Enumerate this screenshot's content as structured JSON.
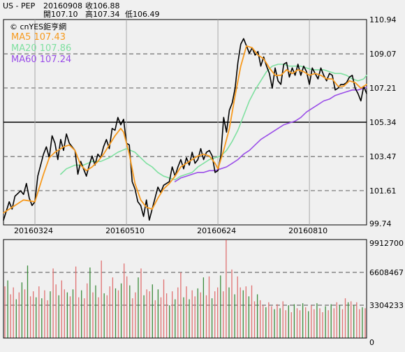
{
  "header": {
    "symbol": "US - PEP",
    "date": "20160908",
    "close_label": "收106.88",
    "open_label": "開107.10",
    "high_label": "高107.34",
    "low_label": "低106.49"
  },
  "source_label": "© cnYES鉅亨網",
  "colors": {
    "background": "#f0f0f0",
    "price": "#000000",
    "ma5": "#f79a1e",
    "ma20": "#7fe0a0",
    "ma60": "#9a4ee8",
    "volume_up": "#e07070",
    "volume_down": "#3a8a3a",
    "grid": "#707070"
  },
  "chart_data": [
    {
      "type": "line",
      "name": "price-chart",
      "ylim": [
        99.74,
        110.94
      ],
      "y_ticks": [
        "110.94",
        "109.07",
        "107.21",
        "105.34",
        "103.47",
        "101.61",
        "99.74"
      ],
      "x_tick_labels": [
        "20160324",
        "20160510",
        "20160624",
        "20160810"
      ],
      "x_tick_index": [
        11,
        43,
        75,
        107
      ],
      "n_days": 128,
      "reference_price": 105.34,
      "legend": [
        {
          "key": "ma5",
          "label": "MA5 107.43"
        },
        {
          "key": "ma20",
          "label": "MA20 107.86"
        },
        {
          "key": "ma60",
          "label": "MA60 107.24"
        }
      ],
      "price_knots": [
        [
          0,
          100.0
        ],
        [
          2,
          101.0
        ],
        [
          3,
          100.6
        ],
        [
          4,
          101.3
        ],
        [
          6,
          101.6
        ],
        [
          7,
          101.4
        ],
        [
          8,
          102.0
        ],
        [
          9,
          101.2
        ],
        [
          10,
          100.8
        ],
        [
          11,
          101.0
        ],
        [
          12,
          102.4
        ],
        [
          14,
          103.6
        ],
        [
          15,
          104.0
        ],
        [
          16,
          103.4
        ],
        [
          17,
          104.6
        ],
        [
          18,
          104.2
        ],
        [
          19,
          103.3
        ],
        [
          20,
          104.4
        ],
        [
          21,
          103.8
        ],
        [
          22,
          104.7
        ],
        [
          23,
          104.2
        ],
        [
          24,
          104.0
        ],
        [
          25,
          103.8
        ],
        [
          26,
          102.5
        ],
        [
          27,
          103.2
        ],
        [
          28,
          102.8
        ],
        [
          29,
          102.4
        ],
        [
          30,
          103.0
        ],
        [
          31,
          103.5
        ],
        [
          32,
          103.0
        ],
        [
          33,
          103.6
        ],
        [
          34,
          103.4
        ],
        [
          35,
          104.0
        ],
        [
          36,
          104.4
        ],
        [
          37,
          103.9
        ],
        [
          38,
          105.0
        ],
        [
          39,
          104.9
        ],
        [
          40,
          105.6
        ],
        [
          41,
          105.2
        ],
        [
          42,
          105.5
        ],
        [
          43,
          104.2
        ],
        [
          44,
          104.1
        ],
        [
          45,
          102.1
        ],
        [
          46,
          101.7
        ],
        [
          47,
          101.0
        ],
        [
          48,
          100.8
        ],
        [
          49,
          100.2
        ],
        [
          50,
          101.1
        ],
        [
          51,
          100.0
        ],
        [
          52,
          100.6
        ],
        [
          53,
          101.2
        ],
        [
          54,
          101.8
        ],
        [
          55,
          101.5
        ],
        [
          56,
          101.9
        ],
        [
          57,
          102.0
        ],
        [
          58,
          102.1
        ],
        [
          59,
          102.9
        ],
        [
          60,
          102.4
        ],
        [
          61,
          102.9
        ],
        [
          62,
          103.3
        ],
        [
          63,
          102.8
        ],
        [
          64,
          103.4
        ],
        [
          65,
          103.0
        ],
        [
          66,
          103.7
        ],
        [
          67,
          103.1
        ],
        [
          68,
          103.3
        ],
        [
          69,
          103.9
        ],
        [
          70,
          103.3
        ],
        [
          71,
          103.7
        ],
        [
          72,
          103.8
        ],
        [
          73,
          103.5
        ],
        [
          74,
          102.6
        ],
        [
          75,
          102.7
        ],
        [
          76,
          103.5
        ],
        [
          77,
          105.6
        ],
        [
          78,
          104.8
        ],
        [
          79,
          106.0
        ],
        [
          80,
          106.4
        ],
        [
          81,
          107.2
        ],
        [
          82,
          108.6
        ],
        [
          83,
          109.6
        ],
        [
          84,
          109.9
        ],
        [
          85,
          109.5
        ],
        [
          86,
          109.1
        ],
        [
          87,
          109.4
        ],
        [
          88,
          109.0
        ],
        [
          89,
          109.2
        ],
        [
          90,
          108.4
        ],
        [
          91,
          108.9
        ],
        [
          92,
          108.4
        ],
        [
          93,
          108.0
        ],
        [
          94,
          107.2
        ],
        [
          95,
          108.3
        ],
        [
          96,
          107.6
        ],
        [
          97,
          107.4
        ],
        [
          98,
          108.5
        ],
        [
          99,
          108.6
        ],
        [
          100,
          107.8
        ],
        [
          101,
          108.3
        ],
        [
          102,
          107.9
        ],
        [
          103,
          108.5
        ],
        [
          104,
          107.9
        ],
        [
          105,
          108.4
        ],
        [
          106,
          108.1
        ],
        [
          107,
          107.4
        ],
        [
          108,
          108.3
        ],
        [
          109,
          108.0
        ],
        [
          110,
          107.7
        ],
        [
          111,
          108.3
        ],
        [
          112,
          107.9
        ],
        [
          113,
          107.6
        ],
        [
          114,
          108.0
        ],
        [
          115,
          107.9
        ],
        [
          116,
          107.1
        ],
        [
          117,
          107.2
        ],
        [
          118,
          107.4
        ],
        [
          119,
          107.4
        ],
        [
          120,
          107.5
        ],
        [
          121,
          107.8
        ],
        [
          122,
          107.9
        ],
        [
          123,
          107.2
        ],
        [
          124,
          106.9
        ],
        [
          125,
          106.5
        ],
        [
          126,
          107.3
        ],
        [
          127,
          106.9
        ]
      ],
      "ma5_knots": [
        [
          0,
          100.4
        ],
        [
          4,
          100.8
        ],
        [
          7,
          101.1
        ],
        [
          11,
          101.0
        ],
        [
          14,
          102.5
        ],
        [
          16,
          103.4
        ],
        [
          18,
          103.7
        ],
        [
          21,
          104.0
        ],
        [
          23,
          104.1
        ],
        [
          25,
          103.8
        ],
        [
          27,
          103.0
        ],
        [
          29,
          102.7
        ],
        [
          31,
          102.9
        ],
        [
          33,
          103.2
        ],
        [
          35,
          103.6
        ],
        [
          37,
          104.1
        ],
        [
          39,
          104.6
        ],
        [
          41,
          105.0
        ],
        [
          42,
          104.8
        ],
        [
          44,
          103.6
        ],
        [
          46,
          102.0
        ],
        [
          48,
          101.1
        ],
        [
          50,
          100.7
        ],
        [
          52,
          100.6
        ],
        [
          54,
          101.2
        ],
        [
          56,
          101.7
        ],
        [
          58,
          102.0
        ],
        [
          60,
          102.4
        ],
        [
          62,
          102.9
        ],
        [
          64,
          103.1
        ],
        [
          66,
          103.3
        ],
        [
          68,
          103.5
        ],
        [
          70,
          103.6
        ],
        [
          72,
          103.5
        ],
        [
          74,
          103.1
        ],
        [
          75,
          102.8
        ],
        [
          77,
          103.8
        ],
        [
          79,
          105.0
        ],
        [
          81,
          106.8
        ],
        [
          83,
          108.4
        ],
        [
          85,
          109.5
        ],
        [
          87,
          109.4
        ],
        [
          89,
          109.0
        ],
        [
          91,
          108.8
        ],
        [
          93,
          108.3
        ],
        [
          95,
          107.9
        ],
        [
          97,
          107.9
        ],
        [
          99,
          108.2
        ],
        [
          101,
          108.0
        ],
        [
          103,
          108.2
        ],
        [
          105,
          108.1
        ],
        [
          107,
          107.9
        ],
        [
          109,
          108.0
        ],
        [
          111,
          107.9
        ],
        [
          113,
          107.7
        ],
        [
          115,
          107.7
        ],
        [
          117,
          107.3
        ],
        [
          119,
          107.3
        ],
        [
          121,
          107.6
        ],
        [
          123,
          107.5
        ],
        [
          125,
          107.2
        ],
        [
          127,
          107.4
        ]
      ],
      "ma20_knots": [
        [
          20,
          102.5
        ],
        [
          22,
          102.8
        ],
        [
          25,
          103.0
        ],
        [
          28,
          103.0
        ],
        [
          31,
          103.2
        ],
        [
          34,
          103.2
        ],
        [
          37,
          103.4
        ],
        [
          40,
          103.7
        ],
        [
          43,
          103.9
        ],
        [
          46,
          103.7
        ],
        [
          48,
          103.4
        ],
        [
          50,
          103.1
        ],
        [
          52,
          102.9
        ],
        [
          54,
          102.6
        ],
        [
          56,
          102.4
        ],
        [
          58,
          102.3
        ],
        [
          60,
          102.2
        ],
        [
          62,
          102.4
        ],
        [
          64,
          102.5
        ],
        [
          66,
          102.6
        ],
        [
          68,
          102.9
        ],
        [
          70,
          103.1
        ],
        [
          72,
          103.3
        ],
        [
          74,
          103.4
        ],
        [
          76,
          103.5
        ],
        [
          78,
          103.8
        ],
        [
          80,
          104.3
        ],
        [
          82,
          104.9
        ],
        [
          84,
          105.7
        ],
        [
          86,
          106.5
        ],
        [
          88,
          107.1
        ],
        [
          90,
          107.6
        ],
        [
          92,
          108.1
        ],
        [
          94,
          108.4
        ],
        [
          96,
          108.5
        ],
        [
          98,
          108.5
        ],
        [
          100,
          108.4
        ],
        [
          102,
          108.4
        ],
        [
          104,
          108.4
        ],
        [
          106,
          108.3
        ],
        [
          108,
          108.2
        ],
        [
          110,
          108.2
        ],
        [
          112,
          108.2
        ],
        [
          114,
          108.1
        ],
        [
          116,
          108.0
        ],
        [
          118,
          108.0
        ],
        [
          120,
          107.9
        ],
        [
          122,
          107.7
        ],
        [
          124,
          107.6
        ],
        [
          126,
          107.7
        ],
        [
          127,
          107.9
        ]
      ],
      "ma60_knots": [
        [
          60,
          102.1
        ],
        [
          62,
          102.3
        ],
        [
          64,
          102.4
        ],
        [
          66,
          102.5
        ],
        [
          68,
          102.6
        ],
        [
          70,
          102.6
        ],
        [
          72,
          102.7
        ],
        [
          74,
          102.7
        ],
        [
          76,
          102.8
        ],
        [
          78,
          102.9
        ],
        [
          80,
          103.1
        ],
        [
          82,
          103.3
        ],
        [
          84,
          103.6
        ],
        [
          86,
          103.8
        ],
        [
          88,
          104.1
        ],
        [
          90,
          104.4
        ],
        [
          92,
          104.6
        ],
        [
          94,
          104.8
        ],
        [
          96,
          105.0
        ],
        [
          98,
          105.2
        ],
        [
          100,
          105.3
        ],
        [
          102,
          105.4
        ],
        [
          104,
          105.6
        ],
        [
          106,
          105.9
        ],
        [
          108,
          106.1
        ],
        [
          110,
          106.3
        ],
        [
          112,
          106.5
        ],
        [
          114,
          106.6
        ],
        [
          116,
          106.8
        ],
        [
          118,
          106.9
        ],
        [
          120,
          107.0
        ],
        [
          122,
          107.1
        ],
        [
          124,
          107.1
        ],
        [
          126,
          107.2
        ],
        [
          127,
          107.24
        ]
      ]
    },
    {
      "type": "bar",
      "name": "volume-chart",
      "ylim": [
        0,
        9912700
      ],
      "y_ticks": [
        "9912700",
        "6608467",
        "3304233",
        "0"
      ],
      "up_color_key": "volume_up",
      "down_color_key": "volume_down",
      "values": [
        5200000,
        5800000,
        4400000,
        5100000,
        3900000,
        4600000,
        5600000,
        4900000,
        7300000,
        4200000,
        4700000,
        4100000,
        5200000,
        4000000,
        4800000,
        3800000,
        4700000,
        7000000,
        5400000,
        4300000,
        5800000,
        4900000,
        4600000,
        4200000,
        4900000,
        7200000,
        4100000,
        4800000,
        4000000,
        5500000,
        7100000,
        4600000,
        5300000,
        4100000,
        7800000,
        4500000,
        4300000,
        5200000,
        6100000,
        5000000,
        4800000,
        5500000,
        7500000,
        6200000,
        5300000,
        4000000,
        4600000,
        6100000,
        7000000,
        4300000,
        4900000,
        4700000,
        5400000,
        3800000,
        4900000,
        4100000,
        5900000,
        4500000,
        3300000,
        4700000,
        3900000,
        5100000,
        6600000,
        4100000,
        5200000,
        3900000,
        4800000,
        4200000,
        5000000,
        4600000,
        6100000,
        4300000,
        6200000,
        4000000,
        4700000,
        5100000,
        6300000,
        4700000,
        9900000,
        5100000,
        6900000,
        4400000,
        6200000,
        5100000,
        4800000,
        5200000,
        4200000,
        5300000,
        3700000,
        4400000,
        3800000,
        3300000,
        3100000,
        3600000,
        3200000,
        2900000,
        3400000,
        3000000,
        3700000,
        2800000,
        3300000,
        2600000,
        3400000,
        3000000,
        2800000,
        3500000,
        3100000,
        2700000,
        3300000,
        2900000,
        3500000,
        3000000,
        2600000,
        3200000,
        2800000,
        3400000,
        3000000,
        3600000,
        3300000,
        2900000,
        4000000,
        3600000,
        3700000,
        3300000,
        3600000,
        2900000,
        3100000,
        3000000
      ],
      "up": [
        true,
        false,
        true,
        true,
        false,
        true,
        false,
        true,
        false,
        true,
        true,
        false,
        true,
        false,
        true,
        true,
        false,
        true,
        true,
        false,
        true,
        true,
        false,
        true,
        false,
        true,
        true,
        false,
        true,
        true,
        false,
        true,
        false,
        true,
        true,
        false,
        true,
        true,
        true,
        false,
        true,
        false,
        true,
        true,
        false,
        true,
        true,
        false,
        true,
        false,
        true,
        true,
        false,
        true,
        false,
        true,
        true,
        true,
        false,
        true,
        false,
        true,
        true,
        false,
        true,
        false,
        true,
        true,
        false,
        true,
        false,
        true,
        true,
        false,
        true,
        true,
        false,
        true,
        true,
        false,
        true,
        false,
        true,
        true,
        false,
        true,
        false,
        true,
        true,
        false,
        true,
        true,
        false,
        true,
        true,
        false,
        true,
        false,
        true,
        true,
        false,
        true,
        false,
        true,
        true,
        false,
        true,
        false,
        true,
        true,
        false,
        true,
        true,
        false,
        true,
        false,
        true,
        true,
        false,
        true,
        true,
        false,
        true,
        false,
        true,
        true,
        false,
        true
      ]
    }
  ]
}
